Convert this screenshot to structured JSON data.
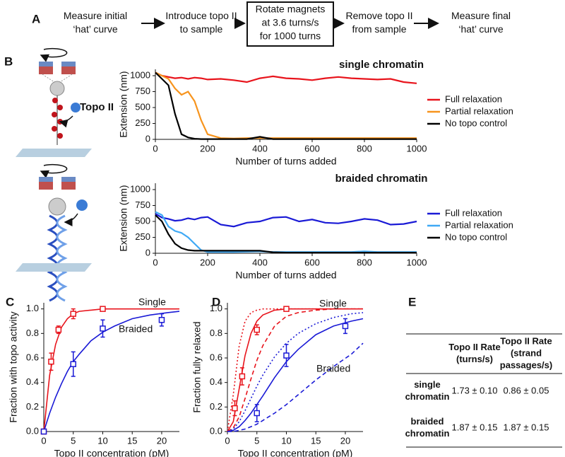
{
  "panel_labels": [
    "A",
    "B",
    "C",
    "D",
    "E"
  ],
  "flow": [
    {
      "lines": [
        "Measure initial",
        "‘hat’ curve"
      ]
    },
    {
      "lines": [
        "Introduce topo II",
        "to sample"
      ]
    },
    {
      "lines": [
        "Rotate magnets",
        "at 3.6 turns/s",
        "for 1000 turns"
      ]
    },
    {
      "lines": [
        "Remove topo II",
        "from sample"
      ]
    },
    {
      "lines": [
        "Measure final",
        "‘hat’ curve"
      ]
    }
  ],
  "illustration_label": "Topo II",
  "chart_data": [
    {
      "type": "line",
      "title": "single chromatin",
      "xlabel": "Number of turns added",
      "ylabel": "Extension (nm)",
      "x": [
        0,
        25,
        50,
        75,
        100,
        125,
        150,
        175,
        200,
        250,
        300,
        350,
        400,
        450,
        500,
        550,
        600,
        650,
        700,
        750,
        800,
        850,
        900,
        950,
        1000
      ],
      "xlim": [
        0,
        1000
      ],
      "xticks": [
        0,
        200,
        400,
        600,
        800,
        1000
      ],
      "ylim": [
        0,
        1100
      ],
      "yticks": [
        0,
        250,
        500,
        750,
        1000
      ],
      "legend": "right",
      "series": [
        {
          "name": "Full relaxation",
          "color": "#e8141c",
          "values": [
            1050,
            1000,
            980,
            960,
            970,
            950,
            970,
            960,
            940,
            950,
            930,
            900,
            960,
            990,
            960,
            950,
            930,
            960,
            980,
            960,
            950,
            940,
            950,
            900,
            880
          ]
        },
        {
          "name": "Partial relaxation",
          "color": "#f7941d",
          "values": [
            1050,
            1000,
            950,
            800,
            700,
            750,
            600,
            300,
            80,
            20,
            15,
            20,
            20,
            20,
            20,
            20,
            20,
            20,
            20,
            20,
            20,
            20,
            20,
            20,
            20
          ]
        },
        {
          "name": "No topo control",
          "color": "#000000",
          "values": [
            1050,
            950,
            850,
            400,
            80,
            30,
            10,
            5,
            5,
            5,
            5,
            5,
            40,
            5,
            5,
            5,
            5,
            5,
            5,
            5,
            5,
            5,
            5,
            5,
            5
          ]
        }
      ]
    },
    {
      "type": "line",
      "title": "braided chromatin",
      "xlabel": "Number of turns added",
      "ylabel": "Extension (nm)",
      "x": [
        0,
        25,
        50,
        75,
        100,
        125,
        150,
        175,
        200,
        250,
        300,
        350,
        400,
        450,
        500,
        550,
        600,
        650,
        700,
        750,
        800,
        850,
        900,
        950,
        1000
      ],
      "xlim": [
        0,
        1000
      ],
      "xticks": [
        0,
        200,
        400,
        600,
        800,
        1000
      ],
      "ylim": [
        0,
        1100
      ],
      "yticks": [
        0,
        250,
        500,
        750,
        1000
      ],
      "legend": "right",
      "series": [
        {
          "name": "Full relaxation",
          "color": "#1a1ad6",
          "values": [
            620,
            560,
            540,
            510,
            520,
            550,
            530,
            560,
            570,
            450,
            420,
            480,
            500,
            560,
            570,
            500,
            530,
            480,
            470,
            500,
            540,
            520,
            450,
            460,
            500
          ]
        },
        {
          "name": "Partial relaxation",
          "color": "#3fa9f5",
          "values": [
            650,
            600,
            420,
            350,
            320,
            250,
            150,
            50,
            20,
            20,
            20,
            25,
            30,
            20,
            20,
            20,
            20,
            20,
            20,
            20,
            30,
            20,
            20,
            20,
            20
          ]
        },
        {
          "name": "No topo control",
          "color": "#000000",
          "values": [
            600,
            500,
            300,
            150,
            80,
            50,
            40,
            40,
            40,
            40,
            40,
            40,
            40,
            15,
            10,
            10,
            10,
            10,
            10,
            10,
            10,
            10,
            10,
            10,
            10
          ]
        }
      ]
    },
    {
      "type": "scatter",
      "xlabel": "Topo II concentration (pM)",
      "ylabel": "Fraction with topo activity",
      "xlim": [
        0,
        23
      ],
      "xticks": [
        0,
        5,
        10,
        15,
        20
      ],
      "ylim": [
        0,
        1.05
      ],
      "yticks": [
        {
          "value": 0,
          "label": "0.0"
        },
        0.2,
        0.4,
        0.6,
        0.8,
        {
          "value": 1,
          "label": "1.0"
        }
      ],
      "annotations": [
        "Single",
        "Braided"
      ],
      "series": [
        {
          "color": "#e8141c",
          "x": [
            0,
            1.25,
            2.5,
            5,
            10
          ],
          "values": [
            0,
            0.57,
            0.83,
            0.96,
            1.0
          ],
          "errors": [
            0,
            0.07,
            0.03,
            0.04,
            0.01
          ]
        },
        {
          "color": "#1a1ad6",
          "x": [
            0,
            5,
            10,
            20
          ],
          "values": [
            0,
            0.55,
            0.84,
            0.91
          ],
          "errors": [
            0,
            0.1,
            0.07,
            0.05
          ]
        }
      ],
      "curves": [
        {
          "color": "#e8141c",
          "dash": "solid",
          "x": [
            0,
            1,
            2,
            3,
            4,
            5,
            6,
            8,
            10,
            12,
            15,
            18,
            21,
            23
          ],
          "values": [
            0,
            0.46,
            0.71,
            0.85,
            0.92,
            0.96,
            0.98,
            0.99,
            1,
            1,
            1,
            1,
            1,
            1
          ]
        },
        {
          "color": "#1a1ad6",
          "dash": "solid",
          "x": [
            0,
            1,
            2,
            3,
            4,
            5,
            6,
            8,
            10,
            12,
            15,
            18,
            21,
            23
          ],
          "values": [
            0,
            0.15,
            0.28,
            0.39,
            0.49,
            0.57,
            0.63,
            0.74,
            0.81,
            0.86,
            0.92,
            0.95,
            0.97,
            0.98
          ]
        }
      ]
    },
    {
      "type": "scatter",
      "xlabel": "Topo II concentration (pM)",
      "ylabel": "Fraction fully relaxed",
      "xlim": [
        0,
        23
      ],
      "xticks": [
        0,
        5,
        10,
        15,
        20
      ],
      "ylim": [
        0,
        1.05
      ],
      "yticks": [
        {
          "value": 0,
          "label": "0.0"
        },
        0.2,
        0.4,
        0.6,
        0.8,
        {
          "value": 1,
          "label": "1.0"
        }
      ],
      "annotations": [
        "Single",
        "Braided"
      ],
      "series": [
        {
          "color": "#e8141c",
          "x": [
            1.25,
            2.5,
            5,
            10
          ],
          "values": [
            0.19,
            0.45,
            0.83,
            1.0
          ],
          "errors": [
            0.06,
            0.07,
            0.04,
            0.01
          ]
        },
        {
          "color": "#1a1ad6",
          "x": [
            5,
            10,
            20
          ],
          "values": [
            0.15,
            0.62,
            0.86
          ],
          "errors": [
            0.07,
            0.09,
            0.06
          ]
        }
      ],
      "curves": [
        {
          "color": "#e8141c",
          "dash": "solid",
          "x": [
            0,
            1,
            2,
            3,
            4,
            5,
            6,
            8,
            10,
            12,
            15,
            18,
            21,
            23
          ],
          "values": [
            0,
            0.08,
            0.35,
            0.62,
            0.8,
            0.9,
            0.95,
            0.99,
            1,
            1,
            1,
            1,
            1,
            1
          ]
        },
        {
          "color": "#e8141c",
          "dash": "dotted",
          "x": [
            0,
            1,
            2,
            3,
            4,
            5,
            6,
            8,
            10,
            12,
            15,
            18,
            21,
            23
          ],
          "values": [
            0,
            0.3,
            0.7,
            0.9,
            0.97,
            0.99,
            1,
            1,
            1,
            1,
            1,
            1,
            1,
            1
          ]
        },
        {
          "color": "#e8141c",
          "dash": "dashed",
          "x": [
            0,
            1,
            2,
            3,
            4,
            5,
            6,
            8,
            10,
            12,
            15,
            18,
            21,
            23
          ],
          "values": [
            0,
            0.03,
            0.12,
            0.27,
            0.43,
            0.58,
            0.7,
            0.86,
            0.94,
            0.97,
            0.99,
            1,
            1,
            1
          ]
        },
        {
          "color": "#1a1ad6",
          "dash": "solid",
          "x": [
            0,
            1,
            2,
            3,
            4,
            5,
            6,
            8,
            10,
            12,
            15,
            18,
            21,
            23
          ],
          "values": [
            0,
            0.01,
            0.04,
            0.09,
            0.15,
            0.22,
            0.29,
            0.44,
            0.57,
            0.67,
            0.79,
            0.86,
            0.9,
            0.92
          ]
        },
        {
          "color": "#1a1ad6",
          "dash": "dotted",
          "x": [
            0,
            1,
            2,
            3,
            4,
            5,
            6,
            8,
            10,
            12,
            15,
            18,
            21,
            23
          ],
          "values": [
            0,
            0.02,
            0.08,
            0.17,
            0.27,
            0.37,
            0.46,
            0.61,
            0.72,
            0.8,
            0.88,
            0.93,
            0.96,
            0.97
          ]
        },
        {
          "color": "#1a1ad6",
          "dash": "dashed",
          "x": [
            0,
            1,
            2,
            3,
            4,
            5,
            6,
            8,
            10,
            12,
            15,
            18,
            21,
            23
          ],
          "values": [
            0,
            0,
            0.01,
            0.02,
            0.04,
            0.06,
            0.09,
            0.15,
            0.22,
            0.3,
            0.42,
            0.53,
            0.63,
            0.72
          ]
        }
      ]
    }
  ],
  "table": {
    "header": [
      [
        "Topo II Rate",
        "(turns/s)"
      ],
      [
        "Topo II Rate",
        "(strand",
        "passages/s)"
      ]
    ],
    "rows": [
      {
        "label": [
          "single",
          "chromatin"
        ],
        "cells": [
          "1.73 ± 0.10",
          "0.86 ± 0.05"
        ]
      },
      {
        "label": [
          "braided",
          "chromatin"
        ],
        "cells": [
          "1.87 ± 0.15",
          "1.87 ± 0.15"
        ]
      }
    ]
  }
}
